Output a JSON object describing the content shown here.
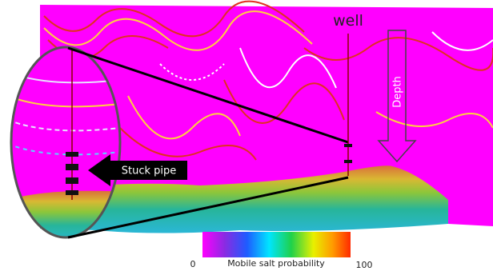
{
  "labels": {
    "well": "well",
    "depth": "Depth",
    "stuck_pipe": "Stuck pipe"
  },
  "colorbar": {
    "label": "Mobile salt probability",
    "min": 0,
    "max": 100
  }
}
